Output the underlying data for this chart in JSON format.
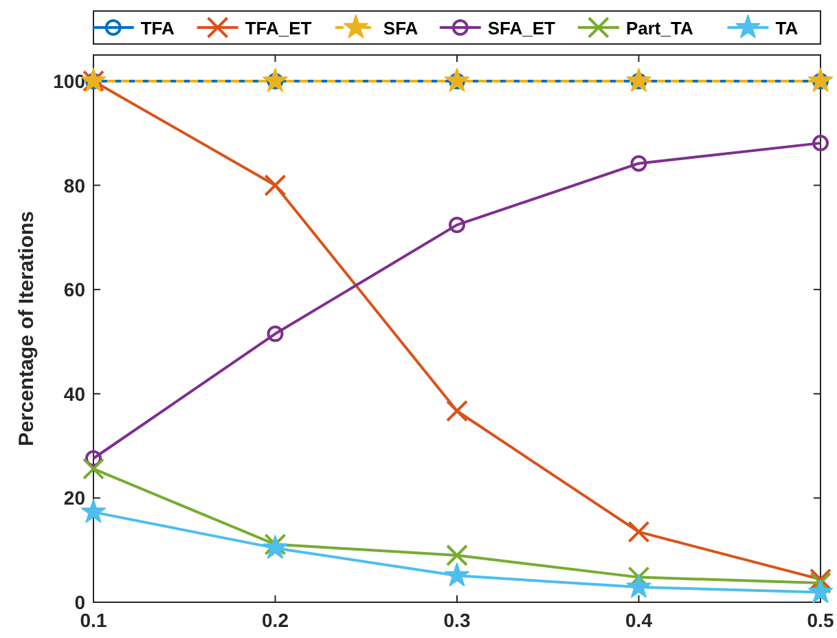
{
  "chart_data": {
    "type": "line",
    "ylabel": "Percentage of Iterations",
    "x": [
      0.1,
      0.2,
      0.3,
      0.4,
      0.5
    ],
    "xlim": [
      0.1,
      0.5
    ],
    "xticks": [
      0.1,
      0.2,
      0.3,
      0.4,
      0.5
    ],
    "ylim": [
      0,
      105
    ],
    "yticks": [
      0,
      20,
      40,
      60,
      80,
      100
    ],
    "grid": false,
    "legend": "top",
    "series": [
      {
        "name": "TFA",
        "color": "#0072bd",
        "marker": "circle",
        "line_style": "solid",
        "values": [
          100,
          100,
          100,
          100,
          100
        ]
      },
      {
        "name": "TFA_ET",
        "color": "#d95319",
        "marker": "cross",
        "line_style": "solid",
        "values": [
          100,
          80,
          36.7,
          13.5,
          4.4
        ]
      },
      {
        "name": "SFA",
        "color": "#edb120",
        "marker": "star",
        "line_style": "dashed",
        "values": [
          100,
          100,
          100,
          100,
          100
        ]
      },
      {
        "name": "SFA_ET",
        "color": "#7e2f8e",
        "marker": "circle",
        "line_style": "solid",
        "values": [
          27.6,
          51.5,
          72.4,
          84.2,
          88.1
        ]
      },
      {
        "name": "Part_TA",
        "color": "#77ac30",
        "marker": "cross",
        "line_style": "solid",
        "values": [
          25.6,
          11.1,
          9,
          4.8,
          3.7
        ]
      },
      {
        "name": "TA",
        "color": "#4dbeee",
        "marker": "star",
        "line_style": "solid",
        "values": [
          17.3,
          10.4,
          5.1,
          2.9,
          1.9
        ]
      }
    ]
  }
}
